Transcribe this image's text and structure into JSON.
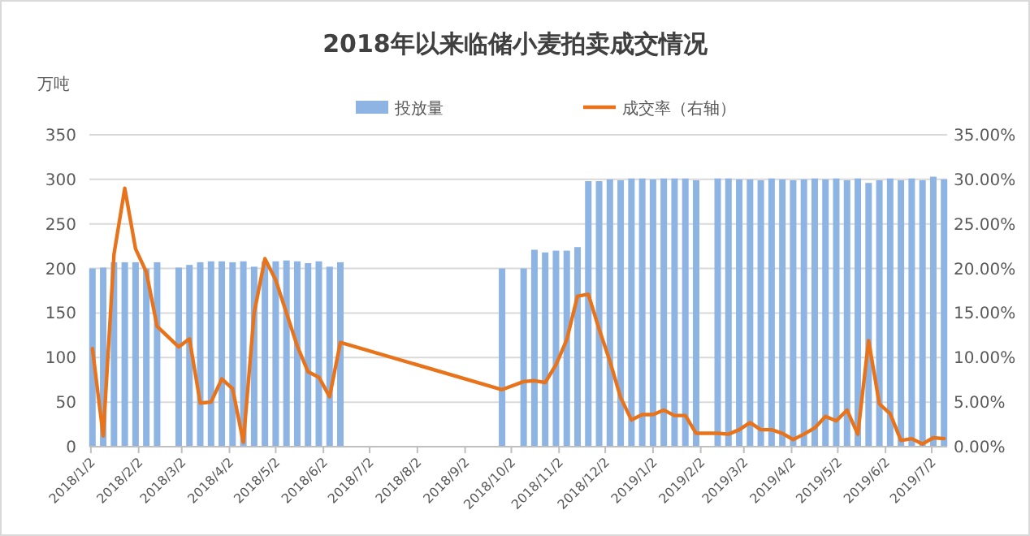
{
  "chart_data": {
    "type": "bar",
    "title": "2018年以来临储小麦拍卖成交情况",
    "ylabel": "万吨",
    "x": [
      "2018-01-03",
      "2018-01-10",
      "2018-01-17",
      "2018-01-24",
      "2018-01-31",
      "2018-02-07",
      "2018-02-14",
      "2018-02-28",
      "2018-03-07",
      "2018-03-14",
      "2018-03-21",
      "2018-03-28",
      "2018-04-04",
      "2018-04-11",
      "2018-04-18",
      "2018-04-25",
      "2018-05-02",
      "2018-05-09",
      "2018-05-16",
      "2018-05-23",
      "2018-05-30",
      "2018-06-06",
      "2018-06-13",
      "2018-09-26",
      "2018-10-10",
      "2018-10-17",
      "2018-10-24",
      "2018-10-31",
      "2018-11-07",
      "2018-11-14",
      "2018-11-21",
      "2018-11-28",
      "2018-12-05",
      "2018-12-12",
      "2018-12-19",
      "2018-12-26",
      "2019-01-02",
      "2019-01-09",
      "2019-01-16",
      "2019-01-23",
      "2019-01-30",
      "2019-02-13",
      "2019-02-20",
      "2019-02-27",
      "2019-03-06",
      "2019-03-13",
      "2019-03-20",
      "2019-03-27",
      "2019-04-03",
      "2019-04-10",
      "2019-04-17",
      "2019-04-24",
      "2019-05-01",
      "2019-05-08",
      "2019-05-15",
      "2019-05-22",
      "2019-05-29",
      "2019-06-05",
      "2019-06-12",
      "2019-06-19",
      "2019-06-26",
      "2019-07-03",
      "2019-07-10"
    ],
    "series": [
      {
        "name": "投放量",
        "color": "#8db4e2",
        "values": [
          200,
          201,
          207,
          207,
          207,
          200,
          207,
          201,
          204,
          207,
          208,
          208,
          207,
          208,
          202,
          208,
          208,
          209,
          208,
          206,
          208,
          202,
          207,
          200,
          200,
          221,
          218,
          220,
          220,
          224,
          298,
          298,
          300,
          299,
          301,
          301,
          300,
          301,
          301,
          301,
          299,
          301,
          301,
          300,
          300,
          299,
          301,
          300,
          299,
          300,
          301,
          300,
          301,
          299,
          301,
          296,
          299,
          301,
          299,
          301,
          299,
          303,
          300
        ]
      },
      {
        "name": "成交率（右轴）",
        "type": "line",
        "axis": "y2",
        "color": "#e8731a",
        "values": [
          11.0,
          1.2,
          21.6,
          29.0,
          22.2,
          19.6,
          13.5,
          11.2,
          12.1,
          4.9,
          5.0,
          7.6,
          6.5,
          0.5,
          15.0,
          21.1,
          18.7,
          15.0,
          11.3,
          8.4,
          7.8,
          5.6,
          11.7,
          6.4,
          7.3,
          7.4,
          7.2,
          9.2,
          12.0,
          16.9,
          17.1,
          13.2,
          9.6,
          5.5,
          3.0,
          3.6,
          3.6,
          4.1,
          3.5,
          3.5,
          1.5,
          1.5,
          1.4,
          1.9,
          2.7,
          1.9,
          1.9,
          1.5,
          0.8,
          1.4,
          2.1,
          3.4,
          2.9,
          4.1,
          1.4,
          11.9,
          4.8,
          3.7,
          0.7,
          0.9,
          0.3,
          1.0,
          0.9
        ]
      }
    ],
    "xlim": [
      "2018-01-01",
      "2019-07-12"
    ],
    "xticks": [
      {
        "value": "2018-01-02",
        "label": "2018/1/2"
      },
      {
        "value": "2018-02-02",
        "label": "2018/2/2"
      },
      {
        "value": "2018-03-02",
        "label": "2018/3/2"
      },
      {
        "value": "2018-04-02",
        "label": "2018/4/2"
      },
      {
        "value": "2018-05-02",
        "label": "2018/5/2"
      },
      {
        "value": "2018-06-02",
        "label": "2018/6/2"
      },
      {
        "value": "2018-07-02",
        "label": "2018/7/2"
      },
      {
        "value": "2018-08-02",
        "label": "2018/8/2"
      },
      {
        "value": "2018-09-02",
        "label": "2018/9/2"
      },
      {
        "value": "2018-10-02",
        "label": "2018/10/2"
      },
      {
        "value": "2018-11-02",
        "label": "2018/11/2"
      },
      {
        "value": "2018-12-02",
        "label": "2018/12/2"
      },
      {
        "value": "2019-01-02",
        "label": "2019/1/2"
      },
      {
        "value": "2019-02-02",
        "label": "2019/2/2"
      },
      {
        "value": "2019-03-02",
        "label": "2019/3/2"
      },
      {
        "value": "2019-04-02",
        "label": "2019/4/2"
      },
      {
        "value": "2019-05-02",
        "label": "2019/5/2"
      },
      {
        "value": "2019-06-02",
        "label": "2019/6/2"
      },
      {
        "value": "2019-07-02",
        "label": "2019/7/2"
      }
    ],
    "ylim": [
      0,
      350
    ],
    "yticks": [
      0,
      50,
      100,
      150,
      200,
      250,
      300,
      350
    ],
    "y2lim": [
      0,
      35
    ],
    "y2ticks": [
      {
        "value": 0,
        "label": "0.00%"
      },
      {
        "value": 5,
        "label": "5.00%"
      },
      {
        "value": 10,
        "label": "10.00%"
      },
      {
        "value": 15,
        "label": "15.00%"
      },
      {
        "value": 20,
        "label": "20.00%"
      },
      {
        "value": 25,
        "label": "25.00%"
      },
      {
        "value": 30,
        "label": "30.00%"
      },
      {
        "value": 35,
        "label": "35.00%"
      }
    ],
    "grid": "y",
    "legend": "top",
    "marker": "none",
    "line_style": "solid"
  }
}
